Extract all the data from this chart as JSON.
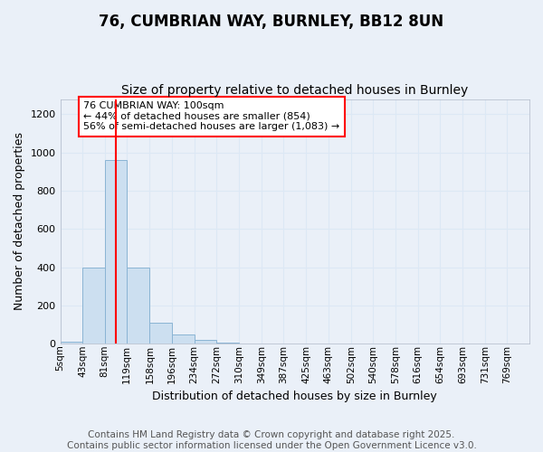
{
  "title": "76, CUMBRIAN WAY, BURNLEY, BB12 8UN",
  "subtitle": "Size of property relative to detached houses in Burnley",
  "xlabel": "Distribution of detached houses by size in Burnley",
  "ylabel": "Number of detached properties",
  "footer_line1": "Contains HM Land Registry data © Crown copyright and database right 2025.",
  "footer_line2": "Contains public sector information licensed under the Open Government Licence v3.0.",
  "bar_color": "#ccdff0",
  "bar_edge_color": "#8ab4d4",
  "background_color": "#eaf0f8",
  "annotation_text": "76 CUMBRIAN WAY: 100sqm\n← 44% of detached houses are smaller (854)\n56% of semi-detached houses are larger (1,083) →",
  "property_line_x": 100,
  "bins": [
    5,
    43,
    81,
    119,
    158,
    196,
    234,
    272,
    310,
    349,
    387,
    425,
    463,
    502,
    540,
    578,
    616,
    654,
    693,
    731,
    769
  ],
  "bin_labels": [
    "5sqm",
    "43sqm",
    "81sqm",
    "119sqm",
    "158sqm",
    "196sqm",
    "234sqm",
    "272sqm",
    "310sqm",
    "349sqm",
    "387sqm",
    "425sqm",
    "463sqm",
    "502sqm",
    "540sqm",
    "578sqm",
    "616sqm",
    "654sqm",
    "693sqm",
    "731sqm",
    "769sqm"
  ],
  "bar_values": [
    10,
    400,
    960,
    400,
    110,
    50,
    20,
    5,
    0,
    0,
    0,
    0,
    0,
    0,
    0,
    0,
    0,
    0,
    0,
    0
  ],
  "ylim_max": 1280,
  "yticks": [
    0,
    200,
    400,
    600,
    800,
    1000,
    1200
  ],
  "grid_color": "#dce8f5",
  "title_fontsize": 12,
  "subtitle_fontsize": 10,
  "label_fontsize": 9,
  "tick_fontsize": 8,
  "annotation_fontsize": 8,
  "footer_fontsize": 7.5
}
